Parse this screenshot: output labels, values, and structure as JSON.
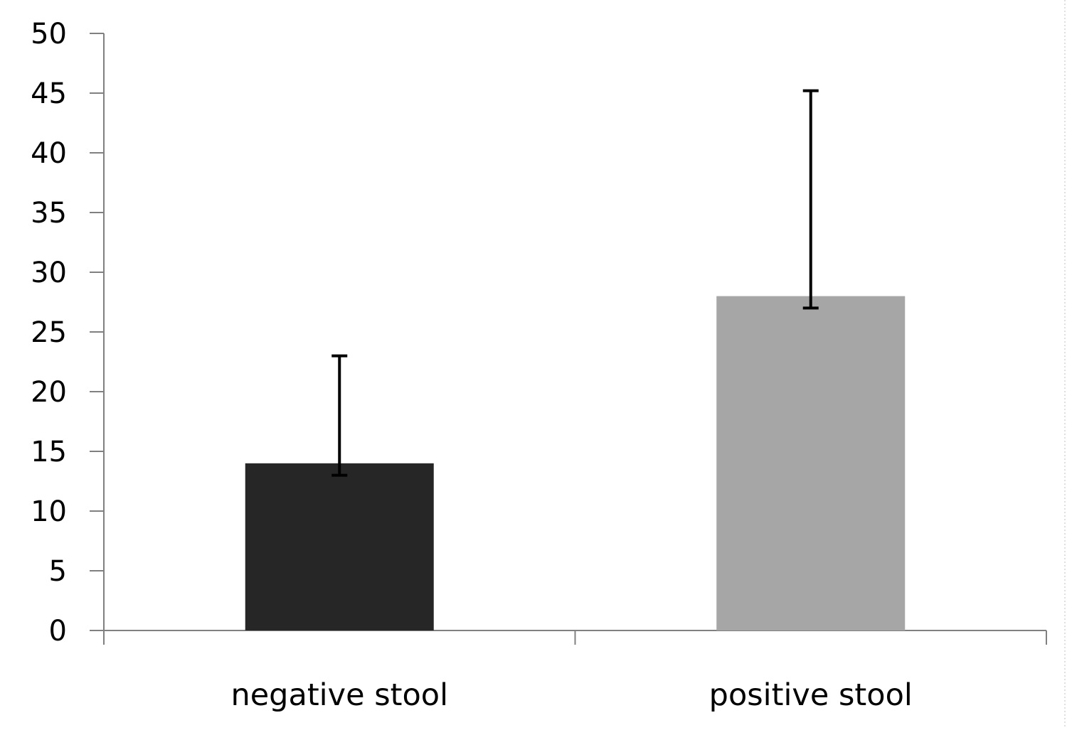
{
  "chart_data": {
    "type": "bar",
    "categories": [
      "negative stool",
      "positive stool"
    ],
    "values": [
      14,
      28
    ],
    "error_low": [
      13,
      27
    ],
    "error_high": [
      23,
      45.2
    ],
    "bar_colors": [
      "#262626",
      "#a6a6a6"
    ],
    "ylim": [
      0,
      50
    ],
    "yticks": [
      "0",
      "5",
      "10",
      "15",
      "20",
      "25",
      "30",
      "35",
      "40",
      "45",
      "50"
    ],
    "title": "",
    "xlabel": "",
    "ylabel": "",
    "grid": false,
    "legend": "none"
  }
}
